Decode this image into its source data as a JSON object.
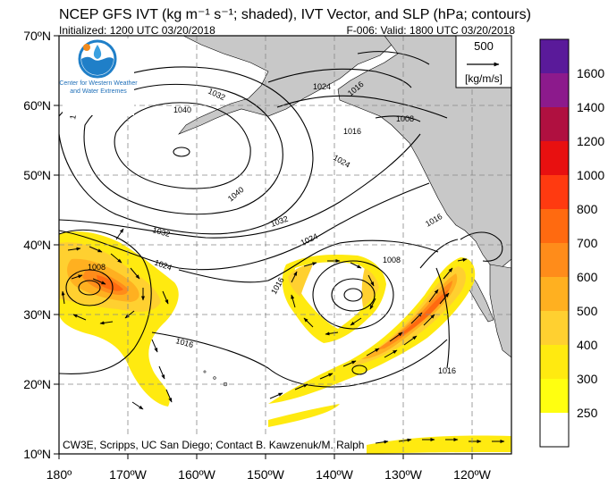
{
  "header": {
    "title": "NCEP GFS IVT (kg m⁻¹ s⁻¹; shaded), IVT Vector, and SLP (hPa; contours)",
    "initialized": "Initialized: 1200 UTC 03/20/2018",
    "valid": "F-006: Valid: 1800 UTC 03/20/2018"
  },
  "logo": {
    "text_line1": "Center for Western Weather",
    "text_line2": "and Water Extremes"
  },
  "reference_vector": {
    "value": "500",
    "unit": "[kg/m/s]"
  },
  "credit": "CW3E, Scripps, UC San Diego; Contact B. Kawzenuk/M. Ralph",
  "axes": {
    "lat_labels": [
      "70ºN",
      "60ºN",
      "50ºN",
      "40ºN",
      "30ºN",
      "20ºN",
      "10ºN"
    ],
    "lon_labels": [
      "180º",
      "170ºW",
      "160ºW",
      "150ºW",
      "140ºW",
      "130ºW",
      "120ºW"
    ]
  },
  "slp_labels": [
    "1032",
    "1024",
    "1016",
    "1040",
    "1008"
  ],
  "colorbar": {
    "levels": [
      "1600",
      "1400",
      "1200",
      "1000",
      "800",
      "700",
      "600",
      "500",
      "400",
      "300",
      "250"
    ],
    "colors": [
      "#5a1a9a",
      "#8c1a8c",
      "#b01040",
      "#e81010",
      "#ff3a10",
      "#ff6a10",
      "#ff8c1a",
      "#ffb020",
      "#ffd030",
      "#ffea10",
      "#ffff10",
      "#ffffff"
    ]
  },
  "colors": {
    "land": "#c8c8c8",
    "grid": "#888888",
    "contour": "#000000"
  }
}
